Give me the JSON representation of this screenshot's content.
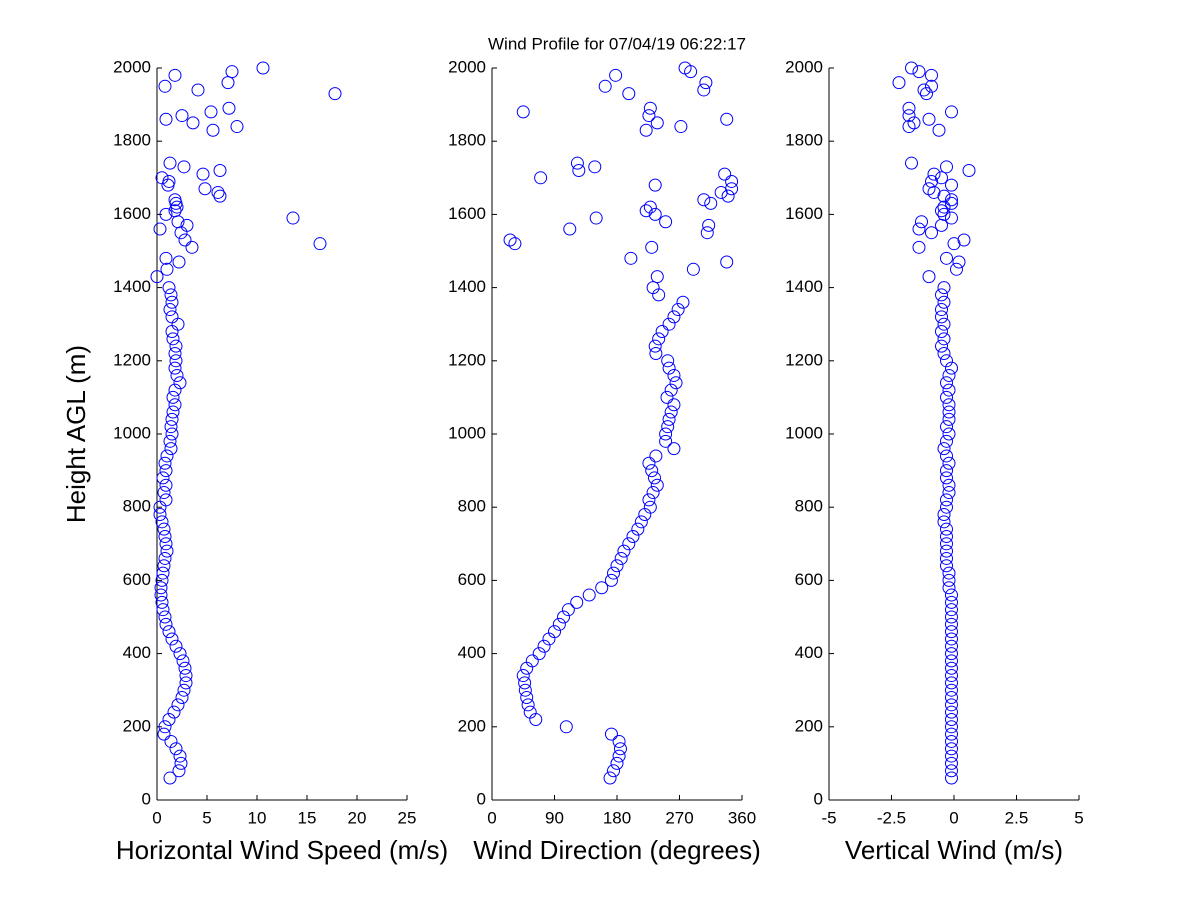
{
  "chart_data": [
    {
      "type": "scatter",
      "ylabel": "Height AGL (m)",
      "xlabel": "Horizontal Wind Speed (m/s)",
      "color": "#0000ff",
      "xlim": [
        0,
        25
      ],
      "xticks": [
        0,
        5,
        10,
        15,
        20,
        25
      ],
      "ylim": [
        0,
        2000
      ],
      "yticks": [
        0,
        200,
        400,
        600,
        800,
        1000,
        1200,
        1400,
        1600,
        1800,
        2000
      ],
      "x": [
        1.3,
        2.2,
        2.4,
        2.3,
        1.9,
        1.4,
        0.7,
        0.8,
        1.2,
        1.7,
        2.1,
        2.5,
        2.7,
        2.9,
        2.9,
        2.8,
        2.6,
        2.3,
        1.9,
        1.5,
        1.2,
        0.9,
        0.8,
        0.6,
        0.5,
        0.4,
        0.4,
        0.5,
        0.6,
        0.7,
        0.8,
        1.0,
        0.9,
        0.8,
        0.7,
        0.5,
        0.3,
        0.3,
        0.9,
        0.7,
        0.9,
        0.6,
        0.9,
        0.8,
        1.0,
        1.4,
        1.3,
        1.5,
        1.4,
        1.5,
        1.6,
        1.8,
        1.6,
        1.8,
        2.3,
        2.0,
        1.8,
        1.9,
        1.8,
        1.9,
        1.6,
        1.5,
        2.1,
        1.5,
        1.3,
        1.5,
        1.4,
        1.2,
        0.0,
        1.0,
        2.2,
        0.9,
        3.5,
        16.3,
        2.8,
        2.4,
        0.3,
        3.0,
        2.1,
        13.6,
        0.9,
        1.8,
        2.0,
        1.9,
        1.8,
        6.3,
        6.1,
        4.8,
        1.1,
        1.2,
        0.5,
        4.6,
        6.3,
        2.7,
        1.3,
        5.6,
        8.0,
        3.6,
        0.9,
        2.5,
        5.4,
        7.2,
        17.8,
        4.1,
        0.8,
        7.1,
        1.8,
        7.5,
        10.6
      ],
      "y": [
        60,
        80,
        100,
        120,
        140,
        160,
        180,
        200,
        220,
        240,
        260,
        280,
        300,
        320,
        340,
        360,
        380,
        400,
        420,
        440,
        460,
        480,
        500,
        520,
        540,
        560,
        580,
        600,
        620,
        640,
        660,
        680,
        700,
        720,
        740,
        760,
        780,
        800,
        820,
        840,
        860,
        880,
        900,
        920,
        940,
        960,
        980,
        1000,
        1020,
        1040,
        1060,
        1080,
        1100,
        1120,
        1140,
        1160,
        1180,
        1200,
        1220,
        1240,
        1260,
        1280,
        1300,
        1320,
        1340,
        1360,
        1380,
        1400,
        1430,
        1450,
        1470,
        1480,
        1510,
        1520,
        1530,
        1550,
        1560,
        1570,
        1580,
        1590,
        1600,
        1610,
        1620,
        1630,
        1640,
        1650,
        1660,
        1670,
        1680,
        1690,
        1700,
        1710,
        1720,
        1730,
        1740,
        1830,
        1840,
        1850,
        1860,
        1870,
        1880,
        1890,
        1930,
        1940,
        1950,
        1960,
        1980,
        1990,
        2000
      ]
    },
    {
      "type": "scatter",
      "title": "Wind Profile for  07/04/19 06:22:17",
      "xlabel": "Wind Direction (degrees)",
      "color": "#0000ff",
      "xlim": [
        0,
        360
      ],
      "xticks": [
        0,
        90,
        180,
        270,
        360
      ],
      "ylim": [
        0,
        2000
      ],
      "yticks": [
        0,
        200,
        400,
        600,
        800,
        1000,
        1200,
        1400,
        1600,
        1800,
        2000
      ],
      "x": [
        170,
        175,
        180,
        183,
        185,
        183,
        172,
        107,
        63,
        55,
        52,
        50,
        48,
        47,
        45,
        50,
        58,
        68,
        75,
        82,
        90,
        97,
        103,
        110,
        122,
        140,
        158,
        172,
        175,
        180,
        186,
        190,
        197,
        203,
        210,
        215,
        220,
        228,
        226,
        232,
        238,
        234,
        230,
        226,
        236,
        262,
        250,
        250,
        253,
        255,
        258,
        262,
        252,
        258,
        265,
        262,
        255,
        253,
        236,
        235,
        240,
        245,
        255,
        262,
        268,
        275,
        240,
        232,
        238,
        290,
        338,
        200,
        230,
        33,
        26,
        310,
        112,
        312,
        250,
        150,
        235,
        222,
        228,
        315,
        305,
        340,
        330,
        345,
        235,
        345,
        70,
        335,
        125,
        148,
        123,
        222,
        272,
        238,
        338,
        226,
        45,
        228,
        197,
        305,
        163,
        308,
        178,
        286,
        278
      ],
      "y": [
        60,
        80,
        100,
        120,
        140,
        160,
        180,
        200,
        220,
        240,
        260,
        280,
        300,
        320,
        340,
        360,
        380,
        400,
        420,
        440,
        460,
        480,
        500,
        520,
        540,
        560,
        580,
        600,
        620,
        640,
        660,
        680,
        700,
        720,
        740,
        760,
        780,
        800,
        820,
        840,
        860,
        880,
        900,
        920,
        940,
        960,
        980,
        1000,
        1020,
        1040,
        1060,
        1080,
        1100,
        1120,
        1140,
        1160,
        1180,
        1200,
        1220,
        1240,
        1260,
        1280,
        1300,
        1320,
        1340,
        1360,
        1380,
        1400,
        1430,
        1450,
        1470,
        1480,
        1510,
        1520,
        1530,
        1550,
        1560,
        1570,
        1580,
        1590,
        1600,
        1610,
        1620,
        1630,
        1640,
        1650,
        1660,
        1670,
        1680,
        1690,
        1700,
        1710,
        1720,
        1730,
        1740,
        1830,
        1840,
        1850,
        1860,
        1870,
        1880,
        1890,
        1930,
        1940,
        1950,
        1960,
        1980,
        1990,
        2000
      ]
    },
    {
      "type": "scatter",
      "xlabel": "Vertical Wind (m/s)",
      "color": "#0000ff",
      "xlim": [
        -5,
        5
      ],
      "xticks": [
        -5,
        -2.5,
        0,
        2.5,
        5
      ],
      "ylim": [
        0,
        2000
      ],
      "yticks": [
        0,
        200,
        400,
        600,
        800,
        1000,
        1200,
        1400,
        1600,
        1800,
        2000
      ],
      "x": [
        -0.1,
        -0.1,
        -0.1,
        -0.1,
        -0.1,
        -0.1,
        -0.1,
        -0.1,
        -0.1,
        -0.1,
        -0.1,
        -0.1,
        -0.1,
        -0.1,
        -0.1,
        -0.1,
        -0.1,
        -0.1,
        -0.1,
        -0.1,
        -0.1,
        -0.1,
        -0.1,
        -0.1,
        -0.1,
        -0.1,
        -0.2,
        -0.2,
        -0.2,
        -0.3,
        -0.3,
        -0.3,
        -0.3,
        -0.3,
        -0.3,
        -0.4,
        -0.4,
        -0.3,
        -0.3,
        -0.2,
        -0.2,
        -0.3,
        -0.3,
        -0.2,
        -0.3,
        -0.4,
        -0.3,
        -0.2,
        -0.3,
        -0.2,
        -0.2,
        -0.2,
        -0.3,
        -0.2,
        -0.3,
        -0.2,
        -0.1,
        -0.3,
        -0.4,
        -0.5,
        -0.4,
        -0.5,
        -0.4,
        -0.5,
        -0.5,
        -0.4,
        -0.5,
        -0.4,
        -1.0,
        0.1,
        0.2,
        -0.3,
        -1.4,
        0.0,
        0.4,
        -0.9,
        -1.4,
        -0.5,
        -1.3,
        -0.1,
        -0.4,
        -0.5,
        -0.4,
        -0.1,
        -0.1,
        -0.4,
        -0.8,
        -1.0,
        -0.1,
        -0.9,
        -0.5,
        -0.8,
        0.6,
        -0.3,
        -1.7,
        -0.6,
        -1.8,
        -1.6,
        -1.0,
        -1.8,
        -0.1,
        -1.8,
        -1.1,
        -1.2,
        -0.9,
        -2.2,
        -0.9,
        -1.4,
        -1.7
      ],
      "y": [
        60,
        80,
        100,
        120,
        140,
        160,
        180,
        200,
        220,
        240,
        260,
        280,
        300,
        320,
        340,
        360,
        380,
        400,
        420,
        440,
        460,
        480,
        500,
        520,
        540,
        560,
        580,
        600,
        620,
        640,
        660,
        680,
        700,
        720,
        740,
        760,
        780,
        800,
        820,
        840,
        860,
        880,
        900,
        920,
        940,
        960,
        980,
        1000,
        1020,
        1040,
        1060,
        1080,
        1100,
        1120,
        1140,
        1160,
        1180,
        1200,
        1220,
        1240,
        1260,
        1280,
        1300,
        1320,
        1340,
        1360,
        1380,
        1400,
        1430,
        1450,
        1470,
        1480,
        1510,
        1520,
        1530,
        1550,
        1560,
        1570,
        1580,
        1590,
        1600,
        1610,
        1620,
        1630,
        1640,
        1650,
        1660,
        1670,
        1680,
        1690,
        1700,
        1710,
        1720,
        1730,
        1740,
        1830,
        1840,
        1850,
        1860,
        1870,
        1880,
        1890,
        1930,
        1940,
        1950,
        1960,
        1980,
        1990,
        2000
      ]
    }
  ]
}
